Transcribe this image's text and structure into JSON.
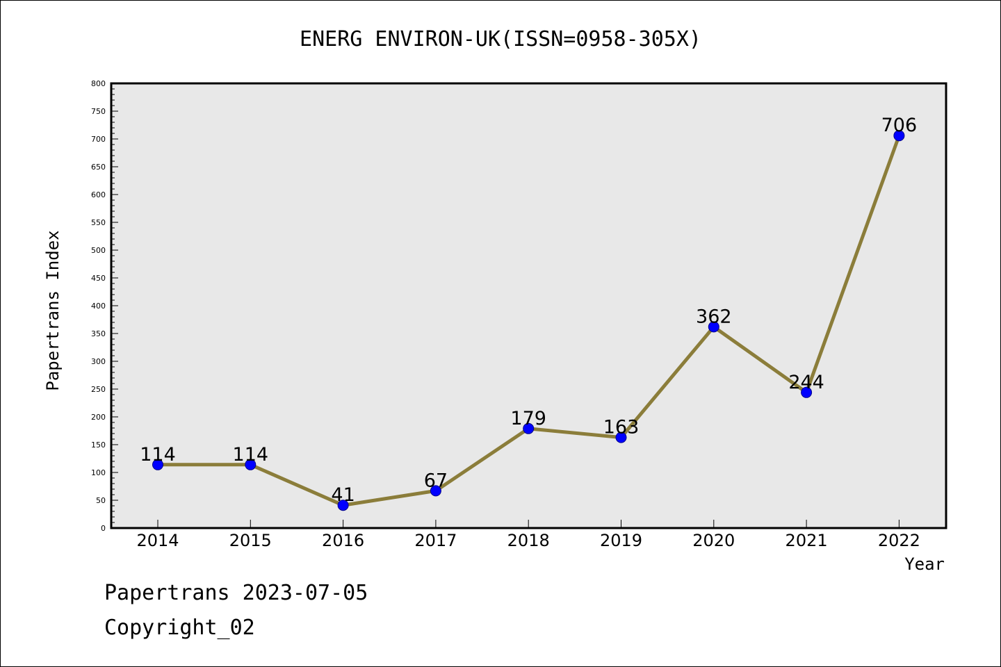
{
  "chart_data": {
    "type": "line",
    "title": "ENERG ENVIRON-UK(ISSN=0958-305X)",
    "xlabel": "Year",
    "ylabel": "Papertrans Index",
    "categories": [
      "2014",
      "2015",
      "2016",
      "2017",
      "2018",
      "2019",
      "2020",
      "2021",
      "2022"
    ],
    "series": [
      {
        "values": [
          114,
          114,
          41,
          67,
          179,
          163,
          362,
          244,
          706
        ]
      }
    ],
    "ylim": [
      0,
      800
    ],
    "ytick_step": 50,
    "grid": false,
    "line_color": "#8b7d3a",
    "marker_color": "#0000ff",
    "plot_background": "#e8e8e8"
  },
  "footer": {
    "line1": "Papertrans 2023-07-05",
    "line2": "Copyright_02"
  }
}
